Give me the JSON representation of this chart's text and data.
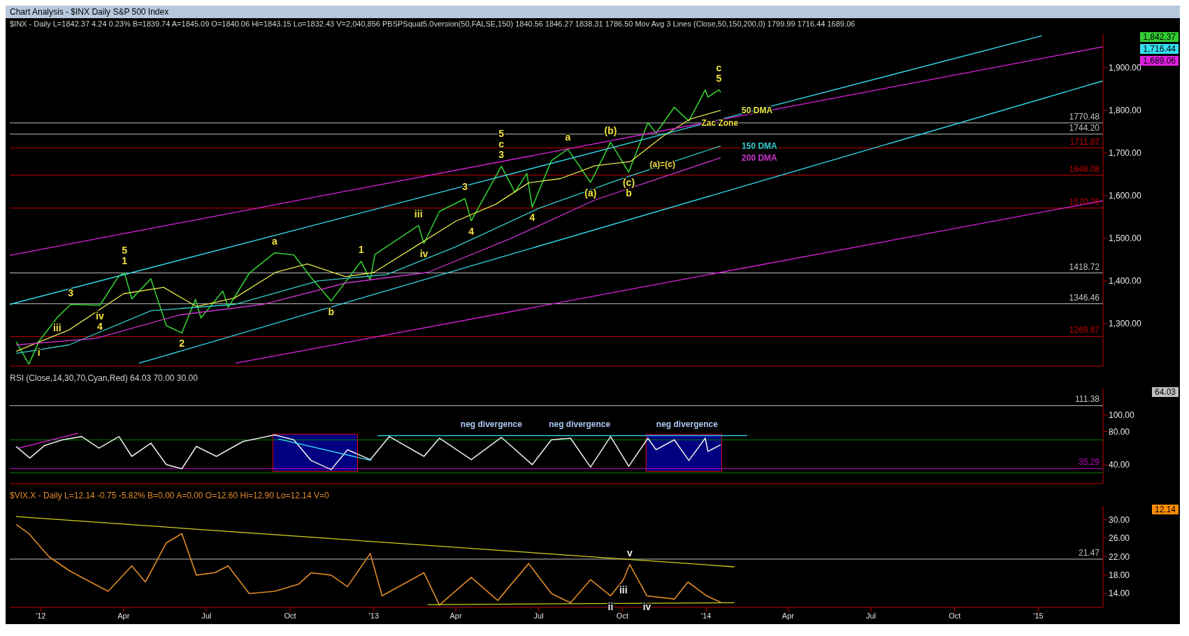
{
  "chart_data": [
    {
      "type": "line",
      "title": "Chart Analysis - $INX Daily S&P 500 Index",
      "subtitle": "$INX - Daily L=1842.37 4.24 0.23% B=1839.74 A=1845.09 O=1840.06 Hi=1843.15 Lo=1832.43 V=2,040,856 PBSPSquat5.0version(50,FALSE,150) 1840.56 1846.27 1838.31 1786.50 Mov Avg 3 Lines (Close,50,150,200,0) 1799.99 1716.44 1689.06",
      "x": [
        "2011-12-05",
        "2011-12-19",
        "2011-12-30",
        "2012-01-19",
        "2012-02-03",
        "2012-03-06",
        "2012-03-27",
        "2012-04-02",
        "2012-04-10",
        "2012-05-01",
        "2012-05-18",
        "2012-06-04",
        "2012-06-19",
        "2012-06-25",
        "2012-07-19",
        "2012-07-25",
        "2012-08-17",
        "2012-09-14",
        "2012-10-05",
        "2012-10-24",
        "2012-11-15",
        "2012-12-18",
        "2012-12-28",
        "2013-01-02",
        "2013-02-19",
        "2013-02-25",
        "2013-03-14",
        "2013-04-11",
        "2013-04-18",
        "2013-05-21",
        "2013-06-05",
        "2013-06-18",
        "2013-06-24",
        "2013-07-15",
        "2013-08-02",
        "2013-08-27",
        "2013-09-18",
        "2013-10-08",
        "2013-10-29",
        "2013-11-07",
        "2013-11-27",
        "2013-12-13",
        "2013-12-31",
        "2014-01-03",
        "2014-01-15",
        "2014-01-17"
      ],
      "series": [
        {
          "color": "#33cc33",
          "values": [
            1257,
            1205,
            1258,
            1314,
            1345,
            1343,
            1412,
            1419,
            1358,
            1405,
            1295,
            1278,
            1357,
            1313,
            1376,
            1338,
            1418,
            1466,
            1461,
            1408,
            1353,
            1446,
            1402,
            1462,
            1530,
            1488,
            1563,
            1593,
            1541,
            1669,
            1608,
            1652,
            1573,
            1682,
            1709,
            1631,
            1725,
            1655,
            1771,
            1747,
            1807,
            1775,
            1848,
            1831,
            1848,
            1842.37
          ]
        },
        {
          "name": "50 DMA",
          "color": "#e6e64c",
          "x": [
            "2011-12-05",
            "2012-02-01",
            "2012-04-01",
            "2012-05-15",
            "2012-06-20",
            "2012-08-01",
            "2012-09-15",
            "2012-10-20",
            "2012-12-01",
            "2013-01-01",
            "2013-02-15",
            "2013-04-01",
            "2013-05-15",
            "2013-06-20",
            "2013-07-25",
            "2013-09-01",
            "2013-10-10",
            "2013-11-15",
            "2013-12-15",
            "2014-01-17"
          ],
          "values": [
            1235,
            1285,
            1370,
            1385,
            1340,
            1360,
            1420,
            1440,
            1410,
            1420,
            1480,
            1540,
            1580,
            1630,
            1640,
            1670,
            1680,
            1740,
            1780,
            1799.99
          ]
        },
        {
          "name": "150 DMA",
          "color": "#33cccc",
          "x": [
            "2011-12-05",
            "2012-02-01",
            "2012-05-01",
            "2012-08-01",
            "2012-11-01",
            "2013-01-15",
            "2013-04-01",
            "2013-07-01",
            "2013-10-01",
            "2014-01-17"
          ],
          "values": [
            1230,
            1250,
            1330,
            1345,
            1400,
            1415,
            1480,
            1570,
            1640,
            1716.44
          ]
        },
        {
          "name": "200 DMA",
          "color": "#cc33cc",
          "x": [
            "2011-12-05",
            "2012-03-01",
            "2012-06-01",
            "2012-09-01",
            "2012-12-01",
            "2013-03-01",
            "2013-06-01",
            "2013-09-01",
            "2014-01-17"
          ],
          "values": [
            1250,
            1265,
            1320,
            1345,
            1395,
            1420,
            1500,
            1590,
            1689.06
          ]
        },
        {
          "type": "line",
          "color": "#33e0f0",
          "x": [
            "2011-11-28",
            "2015-01-05"
          ],
          "values": [
            1345,
            1975
          ]
        },
        {
          "type": "line",
          "color": "#33e0f0",
          "x": [
            "2012-04-18",
            "2015-03-13"
          ],
          "values": [
            1207,
            1869
          ]
        },
        {
          "type": "line",
          "color": "#e020e0",
          "x": [
            "2011-11-28",
            "2015-03-13"
          ],
          "values": [
            1460,
            1949
          ]
        },
        {
          "type": "line",
          "color": "#e020e0",
          "x": [
            "2012-08-02",
            "2015-03-13"
          ],
          "values": [
            1207,
            1588
          ]
        }
      ],
      "xlim": [
        "2011-11-28",
        "2015-03-13"
      ],
      "xticks": [
        {
          "value": "2012-01-01",
          "label": null
        },
        {
          "value": "2012-04-01",
          "label": null
        },
        {
          "value": "2012-07-01",
          "label": null
        },
        {
          "value": "2012-10-01",
          "label": null
        },
        {
          "value": "2013-01-01",
          "label": null
        },
        {
          "value": "2013-04-01",
          "label": null
        },
        {
          "value": "2013-07-01",
          "label": null
        },
        {
          "value": "2013-10-01",
          "label": null
        },
        {
          "value": "2014-01-01",
          "label": null
        },
        {
          "value": "2014-04-01",
          "label": null
        },
        {
          "value": "2014-07-01",
          "label": null
        },
        {
          "value": "2014-10-01",
          "label": null
        },
        {
          "value": "2015-01-01",
          "label": null
        }
      ],
      "ylim": [
        1200,
        1980
      ],
      "yticks": [
        {
          "value": 1300,
          "label": "1,300.00"
        },
        {
          "value": 1400,
          "label": "1,400.00"
        },
        {
          "value": 1500,
          "label": "1,500.00"
        },
        {
          "value": 1600,
          "label": "1,600.00"
        },
        {
          "value": 1700,
          "label": "1,700.00"
        },
        {
          "value": 1800,
          "label": "1,800.00"
        },
        {
          "value": 1900,
          "label": "1,900.00"
        }
      ],
      "tick_labels": "y",
      "grid": false,
      "legend": false,
      "ref_lines": [
        {
          "axis": "y",
          "value": 1770.48,
          "label": "1770.48",
          "color": "#c0c0c0"
        },
        {
          "axis": "y",
          "value": 1744.2,
          "label": "1744.20",
          "color": "#c0c0c0"
        },
        {
          "axis": "y",
          "value": 1711.87,
          "label": "1711.87",
          "color": "#c00000"
        },
        {
          "axis": "y",
          "value": 1648.08,
          "label": "1648.08",
          "color": "#c00000"
        },
        {
          "axis": "y",
          "value": 1570.76,
          "label": "1570.76",
          "color": "#c00000"
        },
        {
          "axis": "y",
          "value": 1418.72,
          "label": "1418.72",
          "color": "#c0c0c0"
        },
        {
          "axis": "y",
          "value": 1346.46,
          "label": "1346.46",
          "color": "#c0c0c0"
        },
        {
          "axis": "y",
          "value": 1269.67,
          "label": "1269.67",
          "color": "#c00000"
        }
      ],
      "annotations": [
        {
          "text": "i",
          "x": "2011-12-30",
          "y": 1258
        },
        {
          "text": "iii",
          "x": "2012-01-19",
          "y": 1314
        },
        {
          "text": "3",
          "x": "2012-02-03",
          "y": 1345
        },
        {
          "text": "iv",
          "x": "2012-03-06",
          "y": 1343
        },
        {
          "text": "4",
          "x": "2012-03-06",
          "y": 1343
        },
        {
          "text": "1",
          "x": "2012-04-02",
          "y": 1419
        },
        {
          "text": "5",
          "x": "2012-04-02",
          "y": 1419
        },
        {
          "text": "2",
          "x": "2012-06-04",
          "y": 1278
        },
        {
          "text": "a",
          "x": "2012-09-14",
          "y": 1466
        },
        {
          "text": "b",
          "x": "2012-11-15",
          "y": 1353
        },
        {
          "text": "1",
          "x": "2012-12-18",
          "y": 1446
        },
        {
          "text": "iii",
          "x": "2013-02-19",
          "y": 1530
        },
        {
          "text": "iv",
          "x": "2013-02-25",
          "y": 1488
        },
        {
          "text": "3",
          "x": "2013-04-11",
          "y": 1593
        },
        {
          "text": "4",
          "x": "2013-04-18",
          "y": 1541
        },
        {
          "text": "3",
          "x": "2013-05-21",
          "y": 1669
        },
        {
          "text": "c",
          "x": "2013-05-21",
          "y": 1669
        },
        {
          "text": "5",
          "x": "2013-05-21",
          "y": 1669
        },
        {
          "text": "4",
          "x": "2013-06-24",
          "y": 1573
        },
        {
          "text": "a",
          "x": "2013-08-02",
          "y": 1709
        },
        {
          "text": "(a)",
          "x": "2013-08-27",
          "y": 1631
        },
        {
          "text": "(b)",
          "x": "2013-09-18",
          "y": 1725
        },
        {
          "text": "(c)",
          "x": "2013-10-08",
          "y": 1655
        },
        {
          "text": "b",
          "x": "2013-10-08",
          "y": 1655
        },
        {
          "text": "(a)=(c)",
          "x": "2013-11-14",
          "y": 1648.08
        },
        {
          "text": "5",
          "x": "2014-01-15",
          "y": 1848
        },
        {
          "text": "c",
          "x": "2014-01-15",
          "y": 1848
        },
        {
          "text": "Zac Zone",
          "x": "2014-01-16",
          "y": 1744.2
        },
        "1,842.37",
        "1,716.44",
        "1,689.06"
      ]
    },
    {
      "type": "line",
      "title": "RSI (Close,14,30,70,Cyan,Red) 64.03 70.00 30.00",
      "x": [
        "2011-12-05",
        "2011-12-20",
        "2012-01-05",
        "2012-01-25",
        "2012-02-15",
        "2012-03-05",
        "2012-03-27",
        "2012-04-10",
        "2012-05-01",
        "2012-05-18",
        "2012-06-04",
        "2012-06-20",
        "2012-07-12",
        "2012-08-10",
        "2012-09-14",
        "2012-10-05",
        "2012-10-24",
        "2012-11-15",
        "2012-12-03",
        "2012-12-28",
        "2013-01-18",
        "2013-02-25",
        "2013-03-14",
        "2013-04-18",
        "2013-05-21",
        "2013-06-24",
        "2013-07-15",
        "2013-08-05",
        "2013-08-27",
        "2013-09-18",
        "2013-10-08",
        "2013-10-29",
        "2013-11-07",
        "2013-11-27",
        "2013-12-13",
        "2013-12-31",
        "2014-01-03",
        "2014-01-17"
      ],
      "series": [
        {
          "color": "#e8e8e8",
          "values": [
            62,
            48,
            63,
            70,
            74,
            60,
            74,
            50,
            66,
            40,
            35,
            62,
            50,
            68,
            76,
            70,
            45,
            34,
            58,
            46,
            74,
            50,
            72,
            46,
            73,
            40,
            70,
            72,
            37,
            74,
            38,
            72,
            58,
            70,
            45,
            72,
            56,
            64.03
          ]
        },
        {
          "type": "line",
          "color": "#e020e0",
          "x": [
            "2011-12-08",
            "2012-02-11"
          ],
          "values": [
            60,
            78
          ]
        },
        {
          "type": "line",
          "color": "#33e0f0",
          "x": [
            "2012-09-18",
            "2012-12-29"
          ],
          "values": [
            71,
            45
          ]
        },
        {
          "type": "line",
          "color": "#33e0f0",
          "x": [
            "2013-01-05",
            "2014-02-15"
          ],
          "values": [
            75,
            75
          ]
        }
      ],
      "xlim": [
        "2011-11-28",
        "2015-03-13"
      ],
      "xticks": [
        {
          "value": "2012-01-01",
          "label": null
        },
        {
          "value": "2012-04-01",
          "label": null
        },
        {
          "value": "2012-07-01",
          "label": null
        },
        {
          "value": "2012-10-01",
          "label": null
        },
        {
          "value": "2013-01-01",
          "label": null
        },
        {
          "value": "2013-04-01",
          "label": null
        },
        {
          "value": "2013-07-01",
          "label": null
        },
        {
          "value": "2013-10-01",
          "label": null
        },
        {
          "value": "2014-01-01",
          "label": null
        },
        {
          "value": "2014-04-01",
          "label": null
        },
        {
          "value": "2014-07-01",
          "label": null
        },
        {
          "value": "2014-10-01",
          "label": null
        },
        {
          "value": "2015-01-01",
          "label": null
        }
      ],
      "ylim": [
        17,
        132
      ],
      "yticks": [
        {
          "value": 40,
          "label": "40.00"
        },
        {
          "value": 80,
          "label": "80.00"
        },
        {
          "value": 100,
          "label": "100.00"
        }
      ],
      "tick_labels": "y",
      "grid": false,
      "legend": false,
      "ref_lines": [
        {
          "axis": "y",
          "value": 111.38,
          "label": "111.38",
          "color": "#c0c0c0"
        },
        {
          "axis": "y",
          "value": 70,
          "label": null,
          "color": "#008000"
        },
        {
          "axis": "y",
          "value": 30,
          "label": null,
          "color": "#008000"
        },
        {
          "axis": "y",
          "value": 35.29,
          "label": "35.29",
          "color": "#c000c0"
        }
      ],
      "bands": [
        {
          "axis": "x",
          "from": "2012-09-12",
          "to": "2012-12-14",
          "color": "#000080"
        },
        {
          "axis": "x",
          "from": "2013-10-27",
          "to": "2014-01-18",
          "color": "#000080"
        }
      ],
      "annotations": [
        {
          "text": "neg divergence",
          "x": "2013-05-10",
          "y": 75
        },
        {
          "text": "neg divergence",
          "x": "2013-08-15",
          "y": 75
        },
        {
          "text": "neg divergence",
          "x": "2013-12-11",
          "y": 75
        },
        "64.03"
      ]
    },
    {
      "type": "line",
      "title": "$VIX.X - Daily L=12.14 -0.75 -5.82% B=0.00 A=0.00 O=12.60 Hi=12.90 Lo=12.14 V=0",
      "x": [
        "2011-12-05",
        "2011-12-19",
        "2012-01-10",
        "2012-02-01",
        "2012-02-20",
        "2012-03-15",
        "2012-04-10",
        "2012-04-25",
        "2012-05-18",
        "2012-06-04",
        "2012-06-20",
        "2012-07-10",
        "2012-07-25",
        "2012-08-17",
        "2012-09-14",
        "2012-10-10",
        "2012-10-24",
        "2012-11-15",
        "2012-12-03",
        "2012-12-28",
        "2013-01-10",
        "2013-02-25",
        "2013-03-14",
        "2013-04-18",
        "2013-05-17",
        "2013-06-20",
        "2013-07-15",
        "2013-08-05",
        "2013-08-27",
        "2013-09-18",
        "2013-10-02",
        "2013-10-09",
        "2013-10-28",
        "2013-11-27",
        "2013-12-12",
        "2013-12-31",
        "2014-01-10",
        "2014-01-17"
      ],
      "series": [
        {
          "color": "#e08a2a",
          "values": [
            29,
            27,
            22,
            19,
            17,
            14.5,
            20,
            16.5,
            25,
            27,
            18,
            18.5,
            20,
            14,
            14.5,
            16,
            18.5,
            18,
            15.5,
            22.7,
            13.5,
            18.5,
            11.5,
            17.5,
            12.5,
            20.5,
            14,
            12,
            17,
            13.5,
            17,
            20.3,
            13.5,
            12.8,
            16.5,
            13.7,
            12.7,
            12.14
          ]
        },
        {
          "type": "line",
          "color": "#d0d020",
          "x": [
            "2011-12-05",
            "2014-02-01"
          ],
          "values": [
            30.7,
            19.8
          ]
        },
        {
          "type": "line",
          "color": "#d0d020",
          "x": [
            "2013-03-01",
            "2014-02-01"
          ],
          "values": [
            11.6,
            12
          ]
        }
      ],
      "xlim": [
        "2011-11-28",
        "2015-03-13"
      ],
      "xticks": [
        {
          "value": "2012-01-01",
          "label": "'12"
        },
        {
          "value": "2012-04-01",
          "label": "Apr"
        },
        {
          "value": "2012-07-01",
          "label": "Jul"
        },
        {
          "value": "2012-10-01",
          "label": "Oct"
        },
        {
          "value": "2013-01-01",
          "label": "'13"
        },
        {
          "value": "2013-04-01",
          "label": "Apr"
        },
        {
          "value": "2013-07-01",
          "label": "Jul"
        },
        {
          "value": "2013-10-01",
          "label": "Oct"
        },
        {
          "value": "2014-01-01",
          "label": "'14"
        },
        {
          "value": "2014-04-01",
          "label": "Apr"
        },
        {
          "value": "2014-07-01",
          "label": "Jul"
        },
        {
          "value": "2014-10-01",
          "label": "Oct"
        },
        {
          "value": "2015-01-01",
          "label": "'15"
        }
      ],
      "ylim": [
        11,
        33
      ],
      "yticks": [
        {
          "value": 14,
          "label": "14.00"
        },
        {
          "value": 18,
          "label": "18.00"
        },
        {
          "value": 22,
          "label": "22.00"
        },
        {
          "value": 26,
          "label": "26.00"
        },
        {
          "value": 30,
          "label": "30.00"
        }
      ],
      "grid": false,
      "legend": false,
      "ref_lines": [
        {
          "axis": "y",
          "value": 21.47,
          "label": "21.47",
          "color": "#c0c0c0"
        }
      ],
      "annotations": [
        {
          "text": "v",
          "x": "2013-10-09",
          "y": 20.3
        },
        {
          "text": "iii",
          "x": "2013-10-02",
          "y": 17
        },
        {
          "text": "iv",
          "x": "2013-10-28",
          "y": 13.5
        },
        {
          "text": "ii",
          "x": "2013-09-18",
          "y": 13.5
        },
        "12.14"
      ]
    }
  ]
}
